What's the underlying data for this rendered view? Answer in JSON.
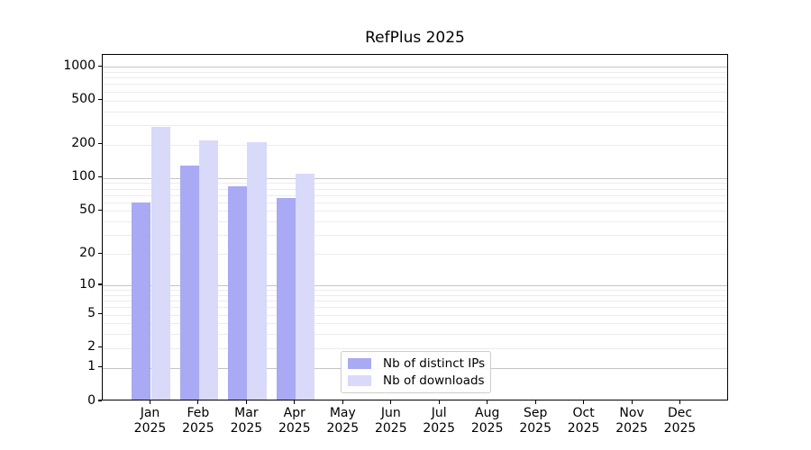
{
  "chart_data": {
    "type": "bar",
    "title": "RefPlus 2025",
    "x_tick_months": [
      "Jan",
      "Feb",
      "Mar",
      "Apr",
      "May",
      "Jun",
      "Jul",
      "Aug",
      "Sep",
      "Oct",
      "Nov",
      "Dec"
    ],
    "x_tick_year": "2025",
    "series": [
      {
        "name": "Nb of distinct IPs",
        "color": "#a9a9f4",
        "values": [
          58,
          124,
          81,
          63,
          0,
          0,
          0,
          0,
          0,
          0,
          0,
          0
        ]
      },
      {
        "name": "Nb of downloads",
        "color": "#d9d9fa",
        "values": [
          277,
          210,
          204,
          106,
          0,
          0,
          0,
          0,
          0,
          0,
          0,
          0
        ]
      }
    ],
    "yscale": "log1p",
    "y_ticks": [
      0,
      1,
      2,
      5,
      10,
      20,
      50,
      100,
      200,
      500,
      1000
    ],
    "ylim": [
      0,
      1280
    ],
    "grid": true,
    "legend_position": "lower center",
    "axis_color": "#000000",
    "grid_major_color": "#c4c4c4",
    "grid_minor_color": "#ececec"
  }
}
